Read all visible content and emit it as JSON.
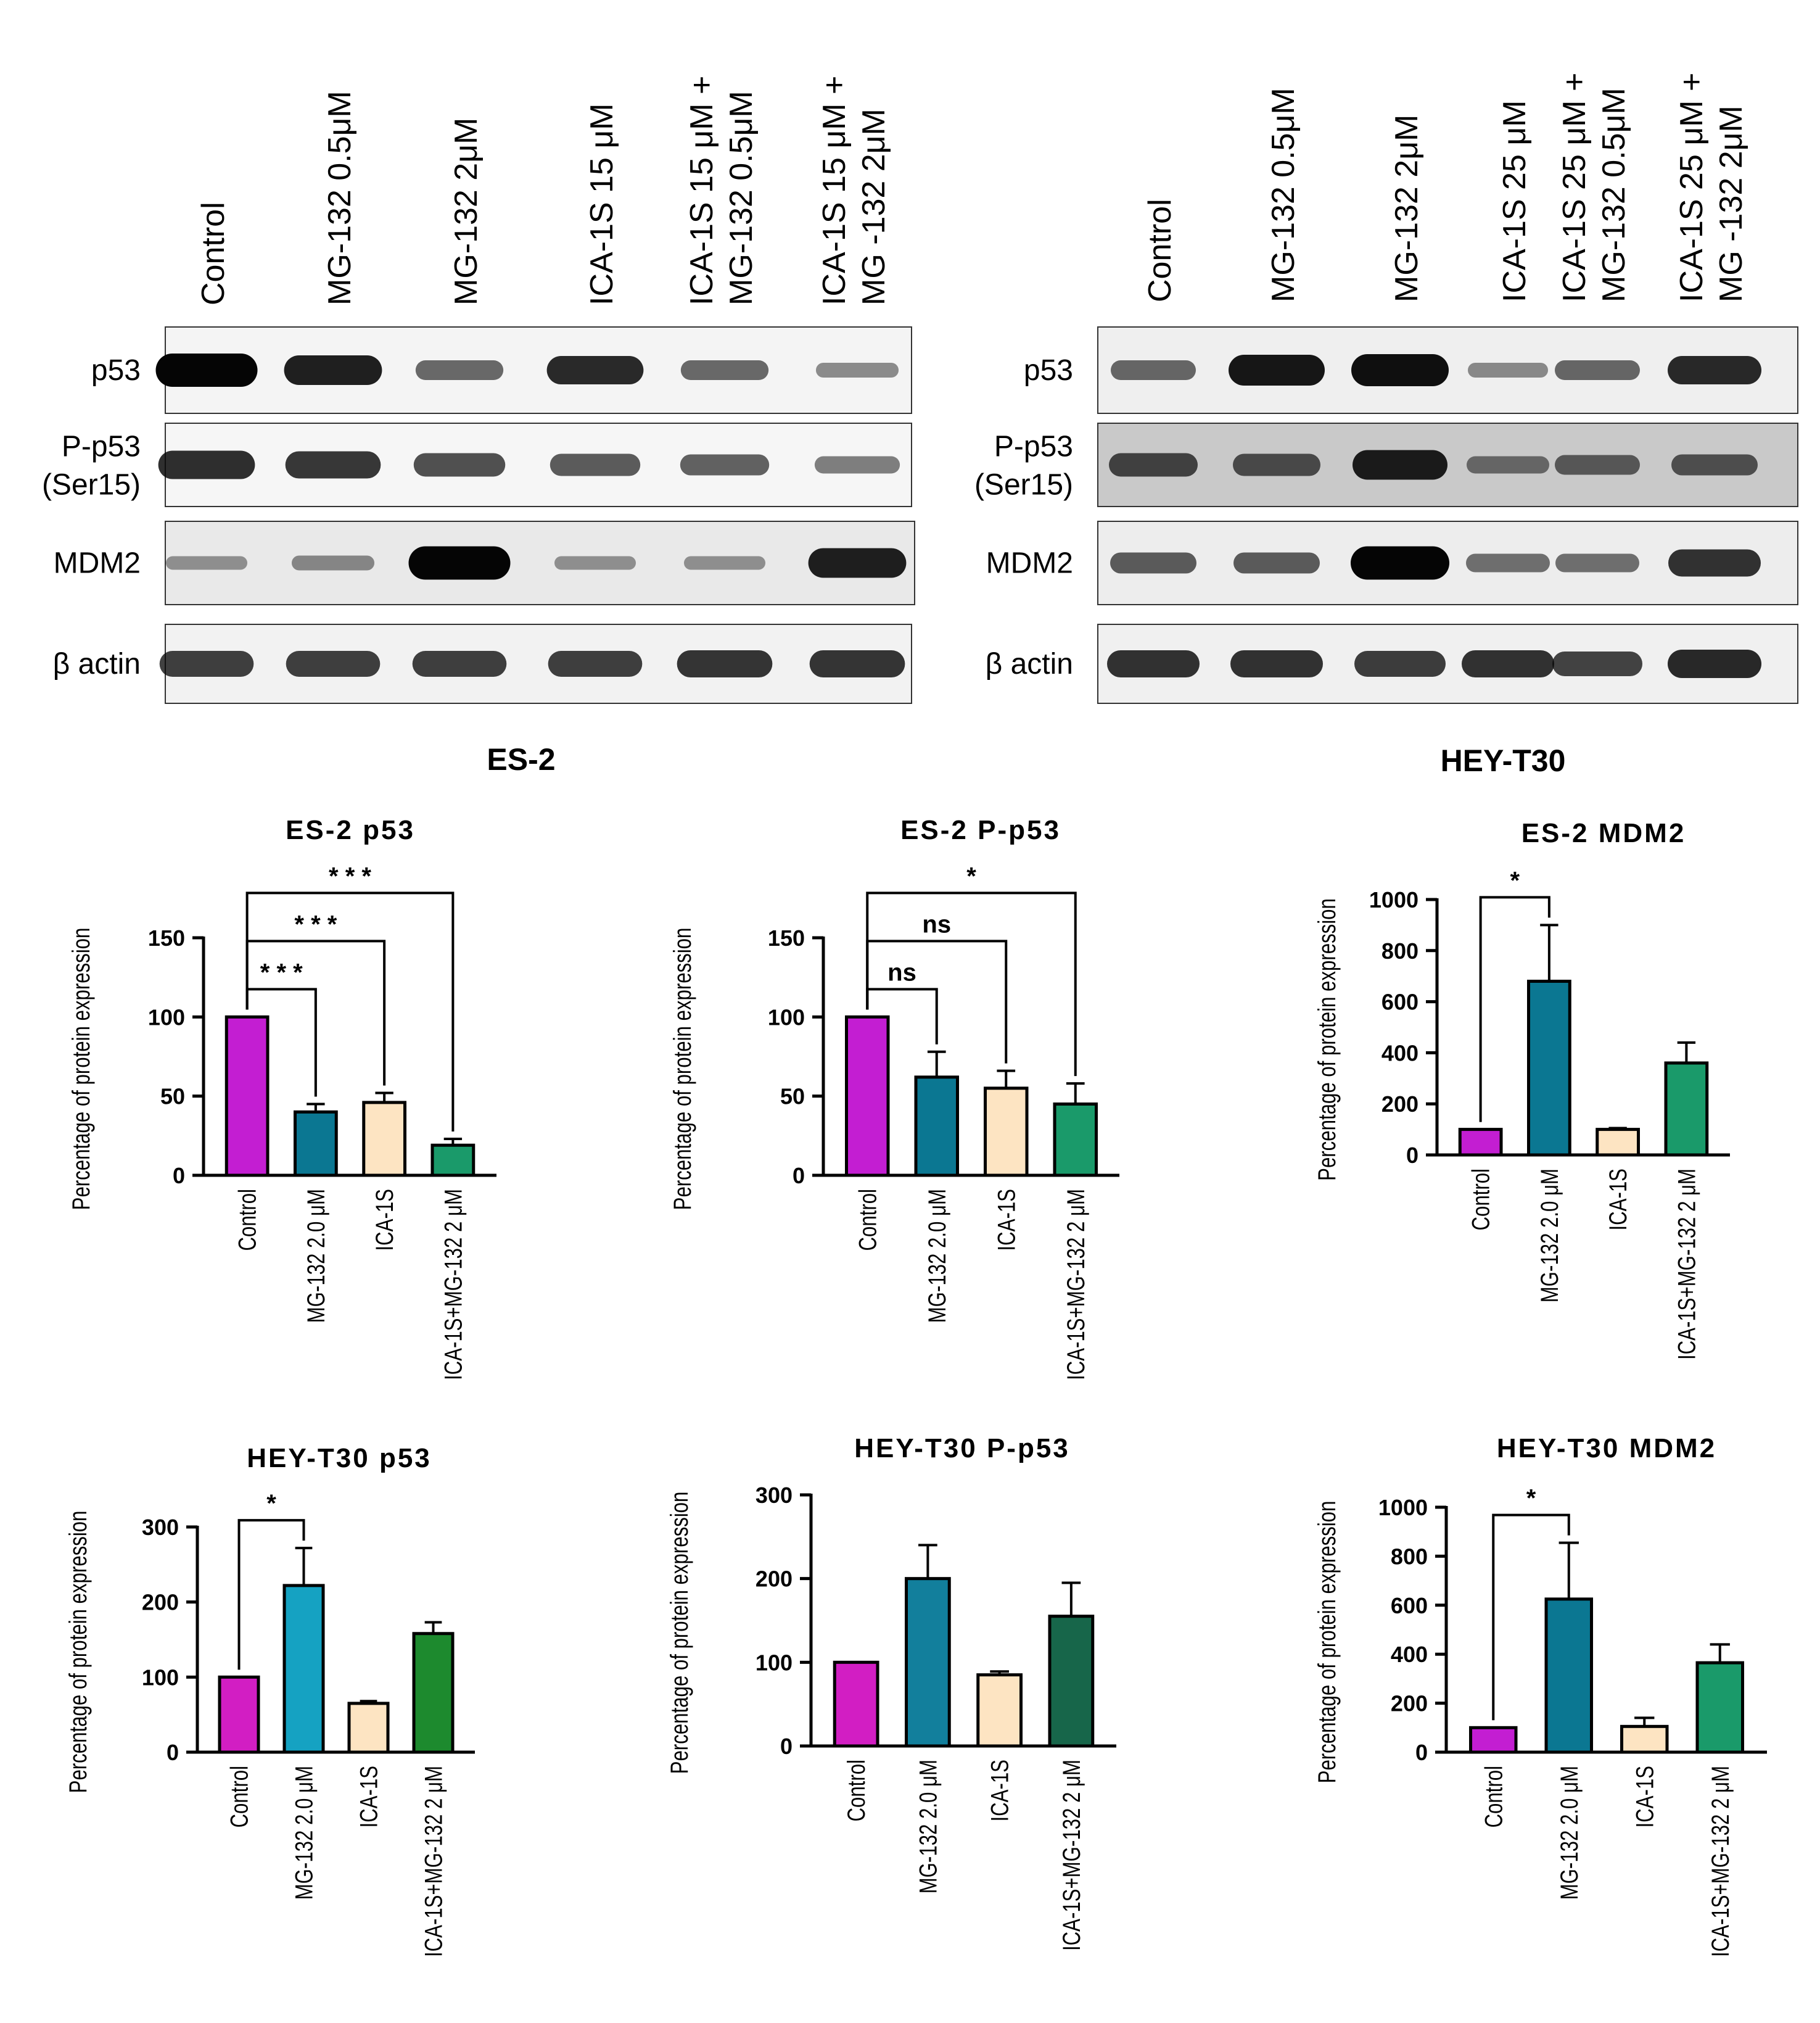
{
  "blots": [
    {
      "cell_line": "ES-2",
      "lanes": [
        "Control",
        "MG-132 0.5μM",
        "MG-132 2μM",
        "ICA-1S 15 μM",
        "ICA-1S 15 μM +\nMG-132 0.5μM",
        "ICA-1S  15 μM +\nMG -132 2μM"
      ],
      "rows": [
        {
          "label": "p53",
          "bg": "#f4f4f4",
          "band": "#050505",
          "intensity": [
            1.0,
            0.85,
            0.45,
            0.8,
            0.45,
            0.25
          ]
        },
        {
          "label": "P-p53\n(Ser15)",
          "bg": "#f6f6f6",
          "band": "#0a0a0a",
          "intensity": [
            0.8,
            0.75,
            0.6,
            0.55,
            0.5,
            0.35
          ]
        },
        {
          "label": "MDM2",
          "bg": "#e9e9e9",
          "band": "#050505",
          "intensity": [
            0.2,
            0.25,
            1.0,
            0.2,
            0.2,
            0.85
          ]
        },
        {
          "label": "β actin",
          "bg": "#f2f2f2",
          "band": "#080808",
          "intensity": [
            0.7,
            0.7,
            0.7,
            0.7,
            0.75,
            0.75
          ]
        }
      ]
    },
    {
      "cell_line": "HEY-T30",
      "lanes": [
        "Control",
        "MG-132 0.5μM",
        "MG-132 2μM",
        "ICA-1S 25 μM",
        "ICA-1S 25 μM +\nMG-132 0.5μM",
        "ICA-1S 25 μM +\nMG -132 2μM"
      ],
      "rows": [
        {
          "label": "p53",
          "bg": "#efefef",
          "band": "#050505",
          "intensity": [
            0.45,
            0.9,
            0.95,
            0.25,
            0.45,
            0.8
          ]
        },
        {
          "label": "P-p53\n(Ser15)",
          "bg": "#c9c9c9",
          "band": "#050505",
          "intensity": [
            0.6,
            0.55,
            0.85,
            0.35,
            0.45,
            0.5
          ]
        },
        {
          "label": "MDM2",
          "bg": "#ededed",
          "band": "#050505",
          "intensity": [
            0.5,
            0.5,
            1.0,
            0.4,
            0.4,
            0.75
          ]
        },
        {
          "label": "β actin",
          "bg": "#f0f0f0",
          "band": "#050505",
          "intensity": [
            0.75,
            0.75,
            0.7,
            0.75,
            0.65,
            0.8
          ]
        }
      ]
    }
  ],
  "chart_data": [
    {
      "type": "bar",
      "title": "ES-2 p53",
      "ylabel": "Percentage of protein expression",
      "categories": [
        "Control",
        "MG-132 2.0 μM",
        "ICA-1S",
        "ICA-1S+MG-132 2 μM"
      ],
      "values": [
        100,
        40,
        46,
        19
      ],
      "errors": [
        0,
        5,
        6,
        4
      ],
      "ylim": [
        0,
        150
      ],
      "yticks": [
        0,
        50,
        100,
        150
      ],
      "colors": [
        "#c31ed2",
        "#0b7792",
        "#fde4c2",
        "#1a9a6a"
      ],
      "significance": [
        {
          "from": 0,
          "to": 1,
          "label": "* * *"
        },
        {
          "from": 0,
          "to": 2,
          "label": "* * *"
        },
        {
          "from": 0,
          "to": 3,
          "label": "* * *"
        }
      ]
    },
    {
      "type": "bar",
      "title": "ES-2 P-p53",
      "ylabel": "Percentage of protein expression",
      "categories": [
        "Control",
        "MG-132 2.0 μM",
        "ICA-1S",
        "ICA-1S+MG-132 2 μM"
      ],
      "values": [
        100,
        62,
        55,
        45
      ],
      "errors": [
        0,
        16,
        11,
        13
      ],
      "ylim": [
        0,
        150
      ],
      "yticks": [
        0,
        50,
        100,
        150
      ],
      "colors": [
        "#c31ed2",
        "#0b7792",
        "#fde4c2",
        "#1a9a6a"
      ],
      "significance": [
        {
          "from": 0,
          "to": 1,
          "label": "ns"
        },
        {
          "from": 0,
          "to": 2,
          "label": "ns"
        },
        {
          "from": 0,
          "to": 3,
          "label": "*"
        }
      ]
    },
    {
      "type": "bar",
      "title": "ES-2 MDM2",
      "ylabel": "Percentage of protein expression",
      "categories": [
        "Control",
        "MG-132 2.0 μM",
        "ICA-1S",
        "ICA-1S+MG-132 2 μM"
      ],
      "values": [
        100,
        680,
        100,
        360
      ],
      "errors": [
        0,
        220,
        5,
        80
      ],
      "ylim": [
        0,
        1000
      ],
      "yticks": [
        0,
        200,
        400,
        600,
        800,
        1000
      ],
      "colors": [
        "#c31ed2",
        "#0b7792",
        "#fde4c2",
        "#1a9a6a"
      ],
      "significance": [
        {
          "from": 0,
          "to": 1,
          "label": "*"
        }
      ]
    },
    {
      "type": "bar",
      "title": "HEY-T30 p53",
      "ylabel": "Percentage of protein expression",
      "categories": [
        "Control",
        "MG-132 2.0 μM",
        "ICA-1S",
        "ICA-1S+MG-132 2 μM"
      ],
      "values": [
        100,
        222,
        65,
        158
      ],
      "errors": [
        0,
        50,
        3,
        15
      ],
      "ylim": [
        0,
        300
      ],
      "yticks": [
        0,
        100,
        200,
        300
      ],
      "colors": [
        "#d21ec3",
        "#15a2c2",
        "#fde4c2",
        "#1d8a2e"
      ],
      "significance": [
        {
          "from": 0,
          "to": 1,
          "label": "*"
        }
      ]
    },
    {
      "type": "bar",
      "title": "HEY-T30 P-p53",
      "ylabel": "Percentage of protein expression",
      "categories": [
        "Control",
        "MG-132 2.0 μM",
        "ICA-1S",
        "ICA-1S+MG-132 2 μM"
      ],
      "values": [
        100,
        200,
        85,
        155
      ],
      "errors": [
        0,
        40,
        4,
        40
      ],
      "ylim": [
        0,
        300
      ],
      "yticks": [
        0,
        100,
        200,
        300
      ],
      "colors": [
        "#d21ec3",
        "#127f9c",
        "#fde4c2",
        "#17664a"
      ],
      "significance": []
    },
    {
      "type": "bar",
      "title": "HEY-T30 MDM2",
      "ylabel": "Percentage of protein expression",
      "categories": [
        "Control",
        "MG-132 2.0 μM",
        "ICA-1S",
        "ICA-1S+MG-132 2 μM"
      ],
      "values": [
        100,
        625,
        105,
        365
      ],
      "errors": [
        0,
        230,
        35,
        75
      ],
      "ylim": [
        0,
        1000
      ],
      "yticks": [
        0,
        200,
        400,
        600,
        800,
        1000
      ],
      "colors": [
        "#c31ed2",
        "#0b7792",
        "#fde4c2",
        "#1a9a6a"
      ],
      "significance": [
        {
          "from": 0,
          "to": 1,
          "label": "*"
        }
      ]
    }
  ]
}
